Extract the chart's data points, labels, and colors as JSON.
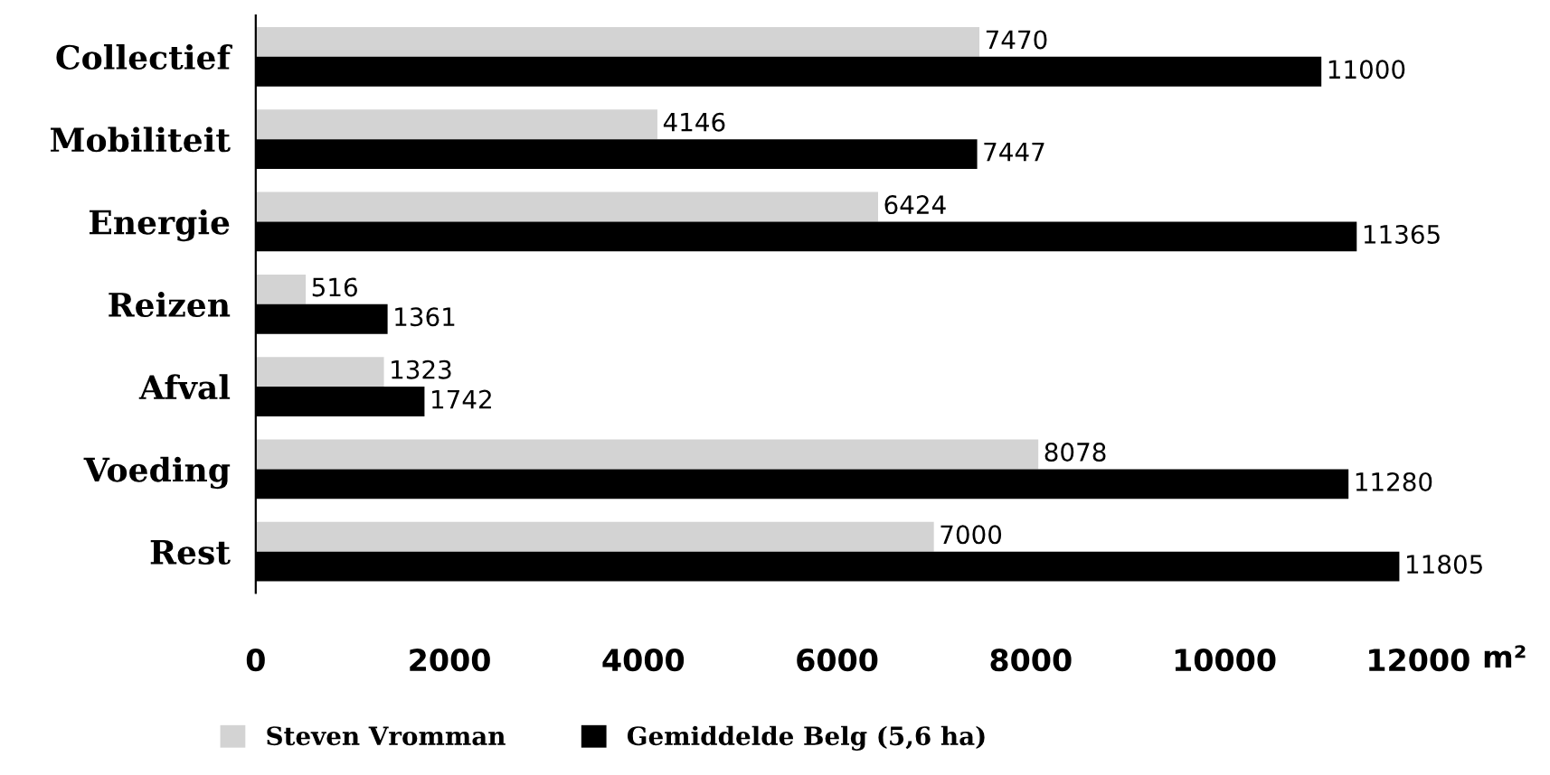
{
  "chart_data": {
    "type": "bar",
    "orientation": "horizontal",
    "categories": [
      "Collectief",
      "Mobiliteit",
      "Energie",
      "Reizen",
      "Afval",
      "Voeding",
      "Rest"
    ],
    "series": [
      {
        "name": "Steven Vromman",
        "color": "#d3d3d3",
        "values": [
          7470,
          4146,
          6424,
          516,
          1323,
          8078,
          7000
        ]
      },
      {
        "name": "Gemiddelde Belg (5,6 ha)",
        "color": "#000000",
        "values": [
          11000,
          7447,
          11365,
          1361,
          1742,
          11280,
          11805
        ]
      }
    ],
    "xlabel": "m²",
    "xlim": [
      0,
      12000
    ],
    "xticks": [
      0,
      2000,
      4000,
      6000,
      8000,
      10000,
      12000
    ],
    "data_labels": true,
    "grid": false,
    "legend": "bottom"
  }
}
